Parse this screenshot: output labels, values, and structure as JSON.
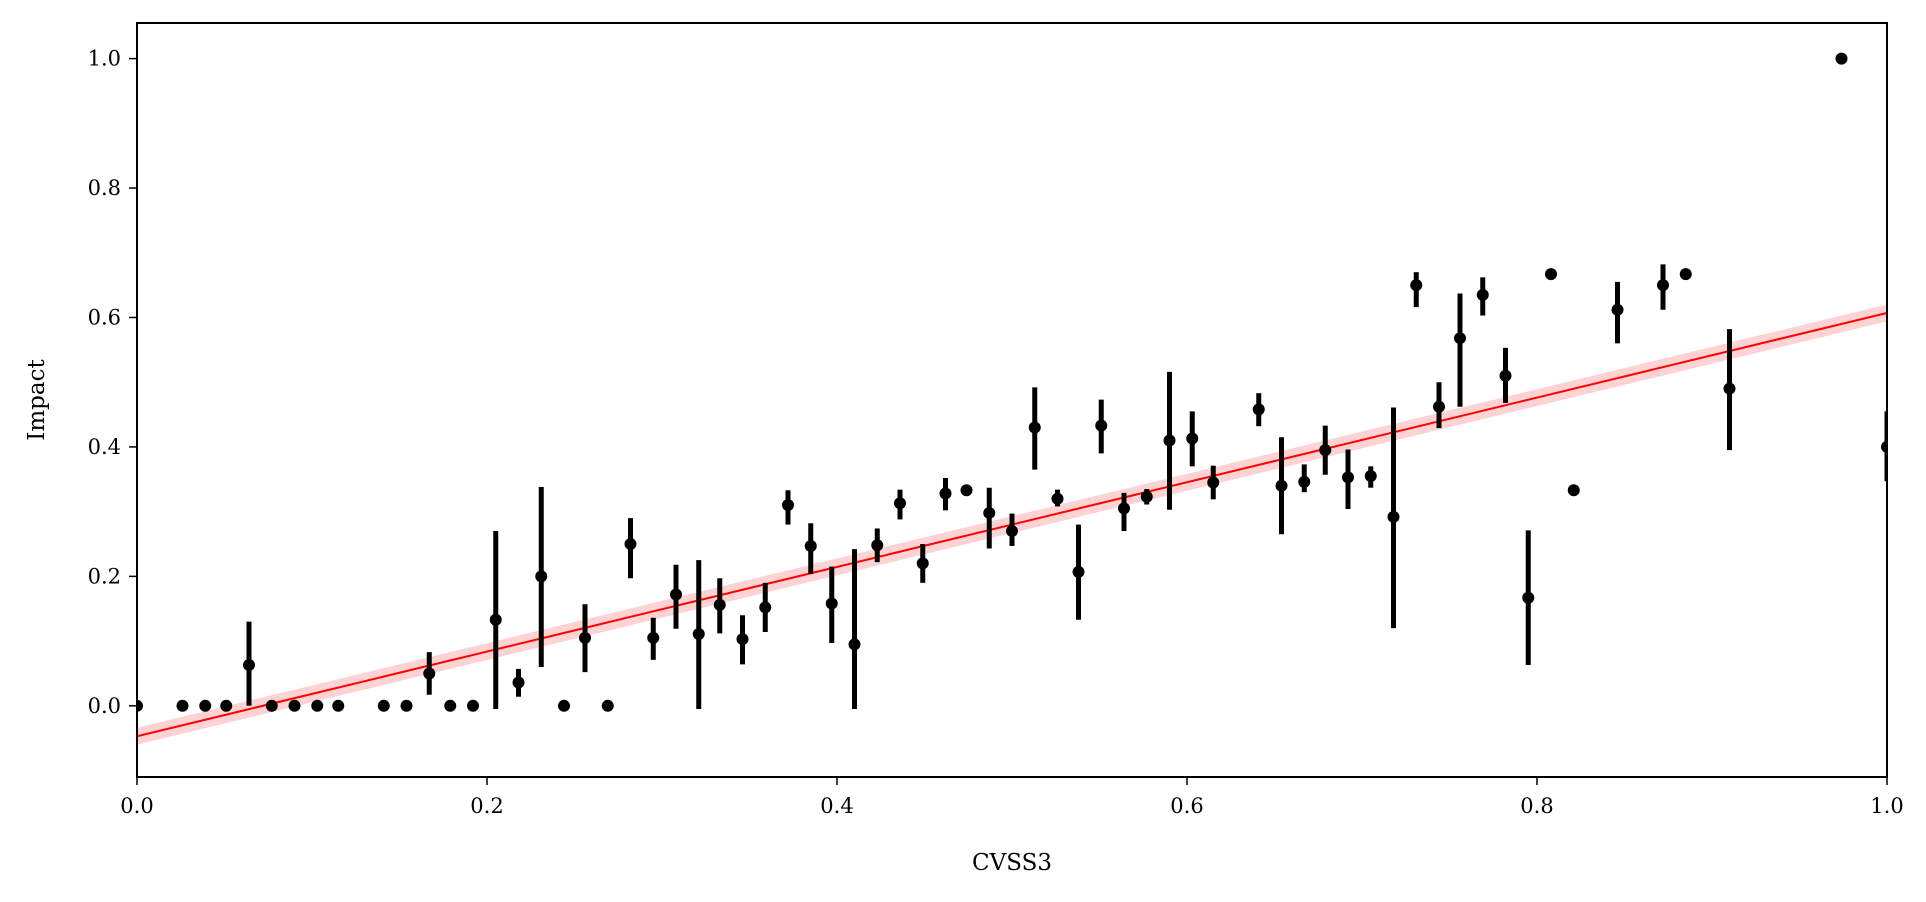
{
  "chart_data": {
    "type": "scatter",
    "xlabel": "CVSS3",
    "ylabel": "Impact",
    "xlim": [
      0.0,
      1.0
    ],
    "ylim": [
      -0.11,
      1.055
    ],
    "x_ticks": [
      0.0,
      0.2,
      0.4,
      0.6,
      0.8,
      1.0
    ],
    "x_tick_labels": [
      "0.0",
      "0.2",
      "0.4",
      "0.6",
      "0.8",
      "1.0"
    ],
    "y_ticks": [
      0.0,
      0.2,
      0.4,
      0.6,
      0.8,
      1.0
    ],
    "y_tick_labels": [
      "0.0",
      "0.2",
      "0.4",
      "0.6",
      "0.8",
      "1.0"
    ],
    "grid": false,
    "legend": "none",
    "colors": {
      "points": "#000000",
      "regression": "#ff0000",
      "ci_band": "#ffc0c0"
    },
    "regression": {
      "intercept": -0.047,
      "slope": 0.654,
      "ci_halfwidth": 0.013
    },
    "points": [
      {
        "x": 0.0,
        "y": 0.0,
        "lo": 0.0,
        "hi": 0.0
      },
      {
        "x": 0.026,
        "y": 0.0,
        "lo": 0.0,
        "hi": 0.0
      },
      {
        "x": 0.039,
        "y": 0.0,
        "lo": 0.0,
        "hi": 0.0
      },
      {
        "x": 0.051,
        "y": 0.0,
        "lo": 0.0,
        "hi": 0.0
      },
      {
        "x": 0.064,
        "y": 0.063,
        "lo": 0.0,
        "hi": 0.13
      },
      {
        "x": 0.077,
        "y": 0.0,
        "lo": 0.0,
        "hi": 0.0
      },
      {
        "x": 0.09,
        "y": 0.0,
        "lo": 0.0,
        "hi": 0.0
      },
      {
        "x": 0.103,
        "y": 0.0,
        "lo": 0.0,
        "hi": 0.0
      },
      {
        "x": 0.115,
        "y": 0.0,
        "lo": 0.0,
        "hi": 0.0
      },
      {
        "x": 0.141,
        "y": 0.0,
        "lo": 0.0,
        "hi": 0.0
      },
      {
        "x": 0.154,
        "y": 0.0,
        "lo": 0.0,
        "hi": 0.0
      },
      {
        "x": 0.167,
        "y": 0.05,
        "lo": 0.017,
        "hi": 0.083
      },
      {
        "x": 0.179,
        "y": 0.0,
        "lo": 0.0,
        "hi": 0.0
      },
      {
        "x": 0.192,
        "y": 0.0,
        "lo": 0.0,
        "hi": 0.0
      },
      {
        "x": 0.205,
        "y": 0.133,
        "lo": -0.005,
        "hi": 0.27
      },
      {
        "x": 0.218,
        "y": 0.036,
        "lo": 0.014,
        "hi": 0.057
      },
      {
        "x": 0.231,
        "y": 0.2,
        "lo": 0.06,
        "hi": 0.338
      },
      {
        "x": 0.244,
        "y": 0.0,
        "lo": 0.0,
        "hi": 0.0
      },
      {
        "x": 0.256,
        "y": 0.105,
        "lo": 0.052,
        "hi": 0.157
      },
      {
        "x": 0.269,
        "y": 0.0,
        "lo": 0.0,
        "hi": 0.0
      },
      {
        "x": 0.282,
        "y": 0.25,
        "lo": 0.197,
        "hi": 0.29
      },
      {
        "x": 0.295,
        "y": 0.105,
        "lo": 0.071,
        "hi": 0.136
      },
      {
        "x": 0.308,
        "y": 0.172,
        "lo": 0.119,
        "hi": 0.218
      },
      {
        "x": 0.321,
        "y": 0.111,
        "lo": -0.005,
        "hi": 0.225
      },
      {
        "x": 0.333,
        "y": 0.156,
        "lo": 0.112,
        "hi": 0.197
      },
      {
        "x": 0.346,
        "y": 0.103,
        "lo": 0.064,
        "hi": 0.14
      },
      {
        "x": 0.359,
        "y": 0.152,
        "lo": 0.114,
        "hi": 0.19
      },
      {
        "x": 0.372,
        "y": 0.31,
        "lo": 0.28,
        "hi": 0.333
      },
      {
        "x": 0.385,
        "y": 0.247,
        "lo": 0.204,
        "hi": 0.282
      },
      {
        "x": 0.397,
        "y": 0.158,
        "lo": 0.097,
        "hi": 0.215
      },
      {
        "x": 0.41,
        "y": 0.095,
        "lo": -0.005,
        "hi": 0.242
      },
      {
        "x": 0.423,
        "y": 0.248,
        "lo": 0.222,
        "hi": 0.274
      },
      {
        "x": 0.436,
        "y": 0.313,
        "lo": 0.288,
        "hi": 0.334
      },
      {
        "x": 0.449,
        "y": 0.22,
        "lo": 0.19,
        "hi": 0.25
      },
      {
        "x": 0.462,
        "y": 0.328,
        "lo": 0.302,
        "hi": 0.352
      },
      {
        "x": 0.474,
        "y": 0.333,
        "lo": 0.333,
        "hi": 0.333
      },
      {
        "x": 0.487,
        "y": 0.298,
        "lo": 0.243,
        "hi": 0.337
      },
      {
        "x": 0.5,
        "y": 0.27,
        "lo": 0.247,
        "hi": 0.297
      },
      {
        "x": 0.513,
        "y": 0.43,
        "lo": 0.365,
        "hi": 0.492
      },
      {
        "x": 0.526,
        "y": 0.32,
        "lo": 0.308,
        "hi": 0.334
      },
      {
        "x": 0.538,
        "y": 0.207,
        "lo": 0.133,
        "hi": 0.28
      },
      {
        "x": 0.551,
        "y": 0.433,
        "lo": 0.39,
        "hi": 0.473
      },
      {
        "x": 0.564,
        "y": 0.305,
        "lo": 0.27,
        "hi": 0.329
      },
      {
        "x": 0.577,
        "y": 0.323,
        "lo": 0.311,
        "hi": 0.335
      },
      {
        "x": 0.59,
        "y": 0.41,
        "lo": 0.303,
        "hi": 0.516
      },
      {
        "x": 0.603,
        "y": 0.413,
        "lo": 0.37,
        "hi": 0.455
      },
      {
        "x": 0.615,
        "y": 0.345,
        "lo": 0.319,
        "hi": 0.371
      },
      {
        "x": 0.641,
        "y": 0.458,
        "lo": 0.432,
        "hi": 0.483
      },
      {
        "x": 0.654,
        "y": 0.34,
        "lo": 0.265,
        "hi": 0.415
      },
      {
        "x": 0.667,
        "y": 0.346,
        "lo": 0.33,
        "hi": 0.373
      },
      {
        "x": 0.679,
        "y": 0.395,
        "lo": 0.357,
        "hi": 0.433
      },
      {
        "x": 0.692,
        "y": 0.353,
        "lo": 0.304,
        "hi": 0.396
      },
      {
        "x": 0.705,
        "y": 0.355,
        "lo": 0.337,
        "hi": 0.37
      },
      {
        "x": 0.718,
        "y": 0.292,
        "lo": 0.12,
        "hi": 0.461
      },
      {
        "x": 0.731,
        "y": 0.65,
        "lo": 0.616,
        "hi": 0.67
      },
      {
        "x": 0.744,
        "y": 0.462,
        "lo": 0.429,
        "hi": 0.5
      },
      {
        "x": 0.756,
        "y": 0.568,
        "lo": 0.462,
        "hi": 0.637
      },
      {
        "x": 0.769,
        "y": 0.635,
        "lo": 0.603,
        "hi": 0.662
      },
      {
        "x": 0.782,
        "y": 0.51,
        "lo": 0.468,
        "hi": 0.553
      },
      {
        "x": 0.795,
        "y": 0.167,
        "lo": 0.063,
        "hi": 0.271
      },
      {
        "x": 0.808,
        "y": 0.667,
        "lo": 0.667,
        "hi": 0.667
      },
      {
        "x": 0.821,
        "y": 0.333,
        "lo": 0.333,
        "hi": 0.333
      },
      {
        "x": 0.846,
        "y": 0.612,
        "lo": 0.56,
        "hi": 0.655
      },
      {
        "x": 0.872,
        "y": 0.65,
        "lo": 0.612,
        "hi": 0.682
      },
      {
        "x": 0.885,
        "y": 0.667,
        "lo": 0.667,
        "hi": 0.667
      },
      {
        "x": 0.91,
        "y": 0.49,
        "lo": 0.395,
        "hi": 0.582
      },
      {
        "x": 0.974,
        "y": 1.0,
        "lo": 1.0,
        "hi": 1.0
      },
      {
        "x": 1.0,
        "y": 0.4,
        "lo": 0.347,
        "hi": 0.455
      }
    ]
  }
}
